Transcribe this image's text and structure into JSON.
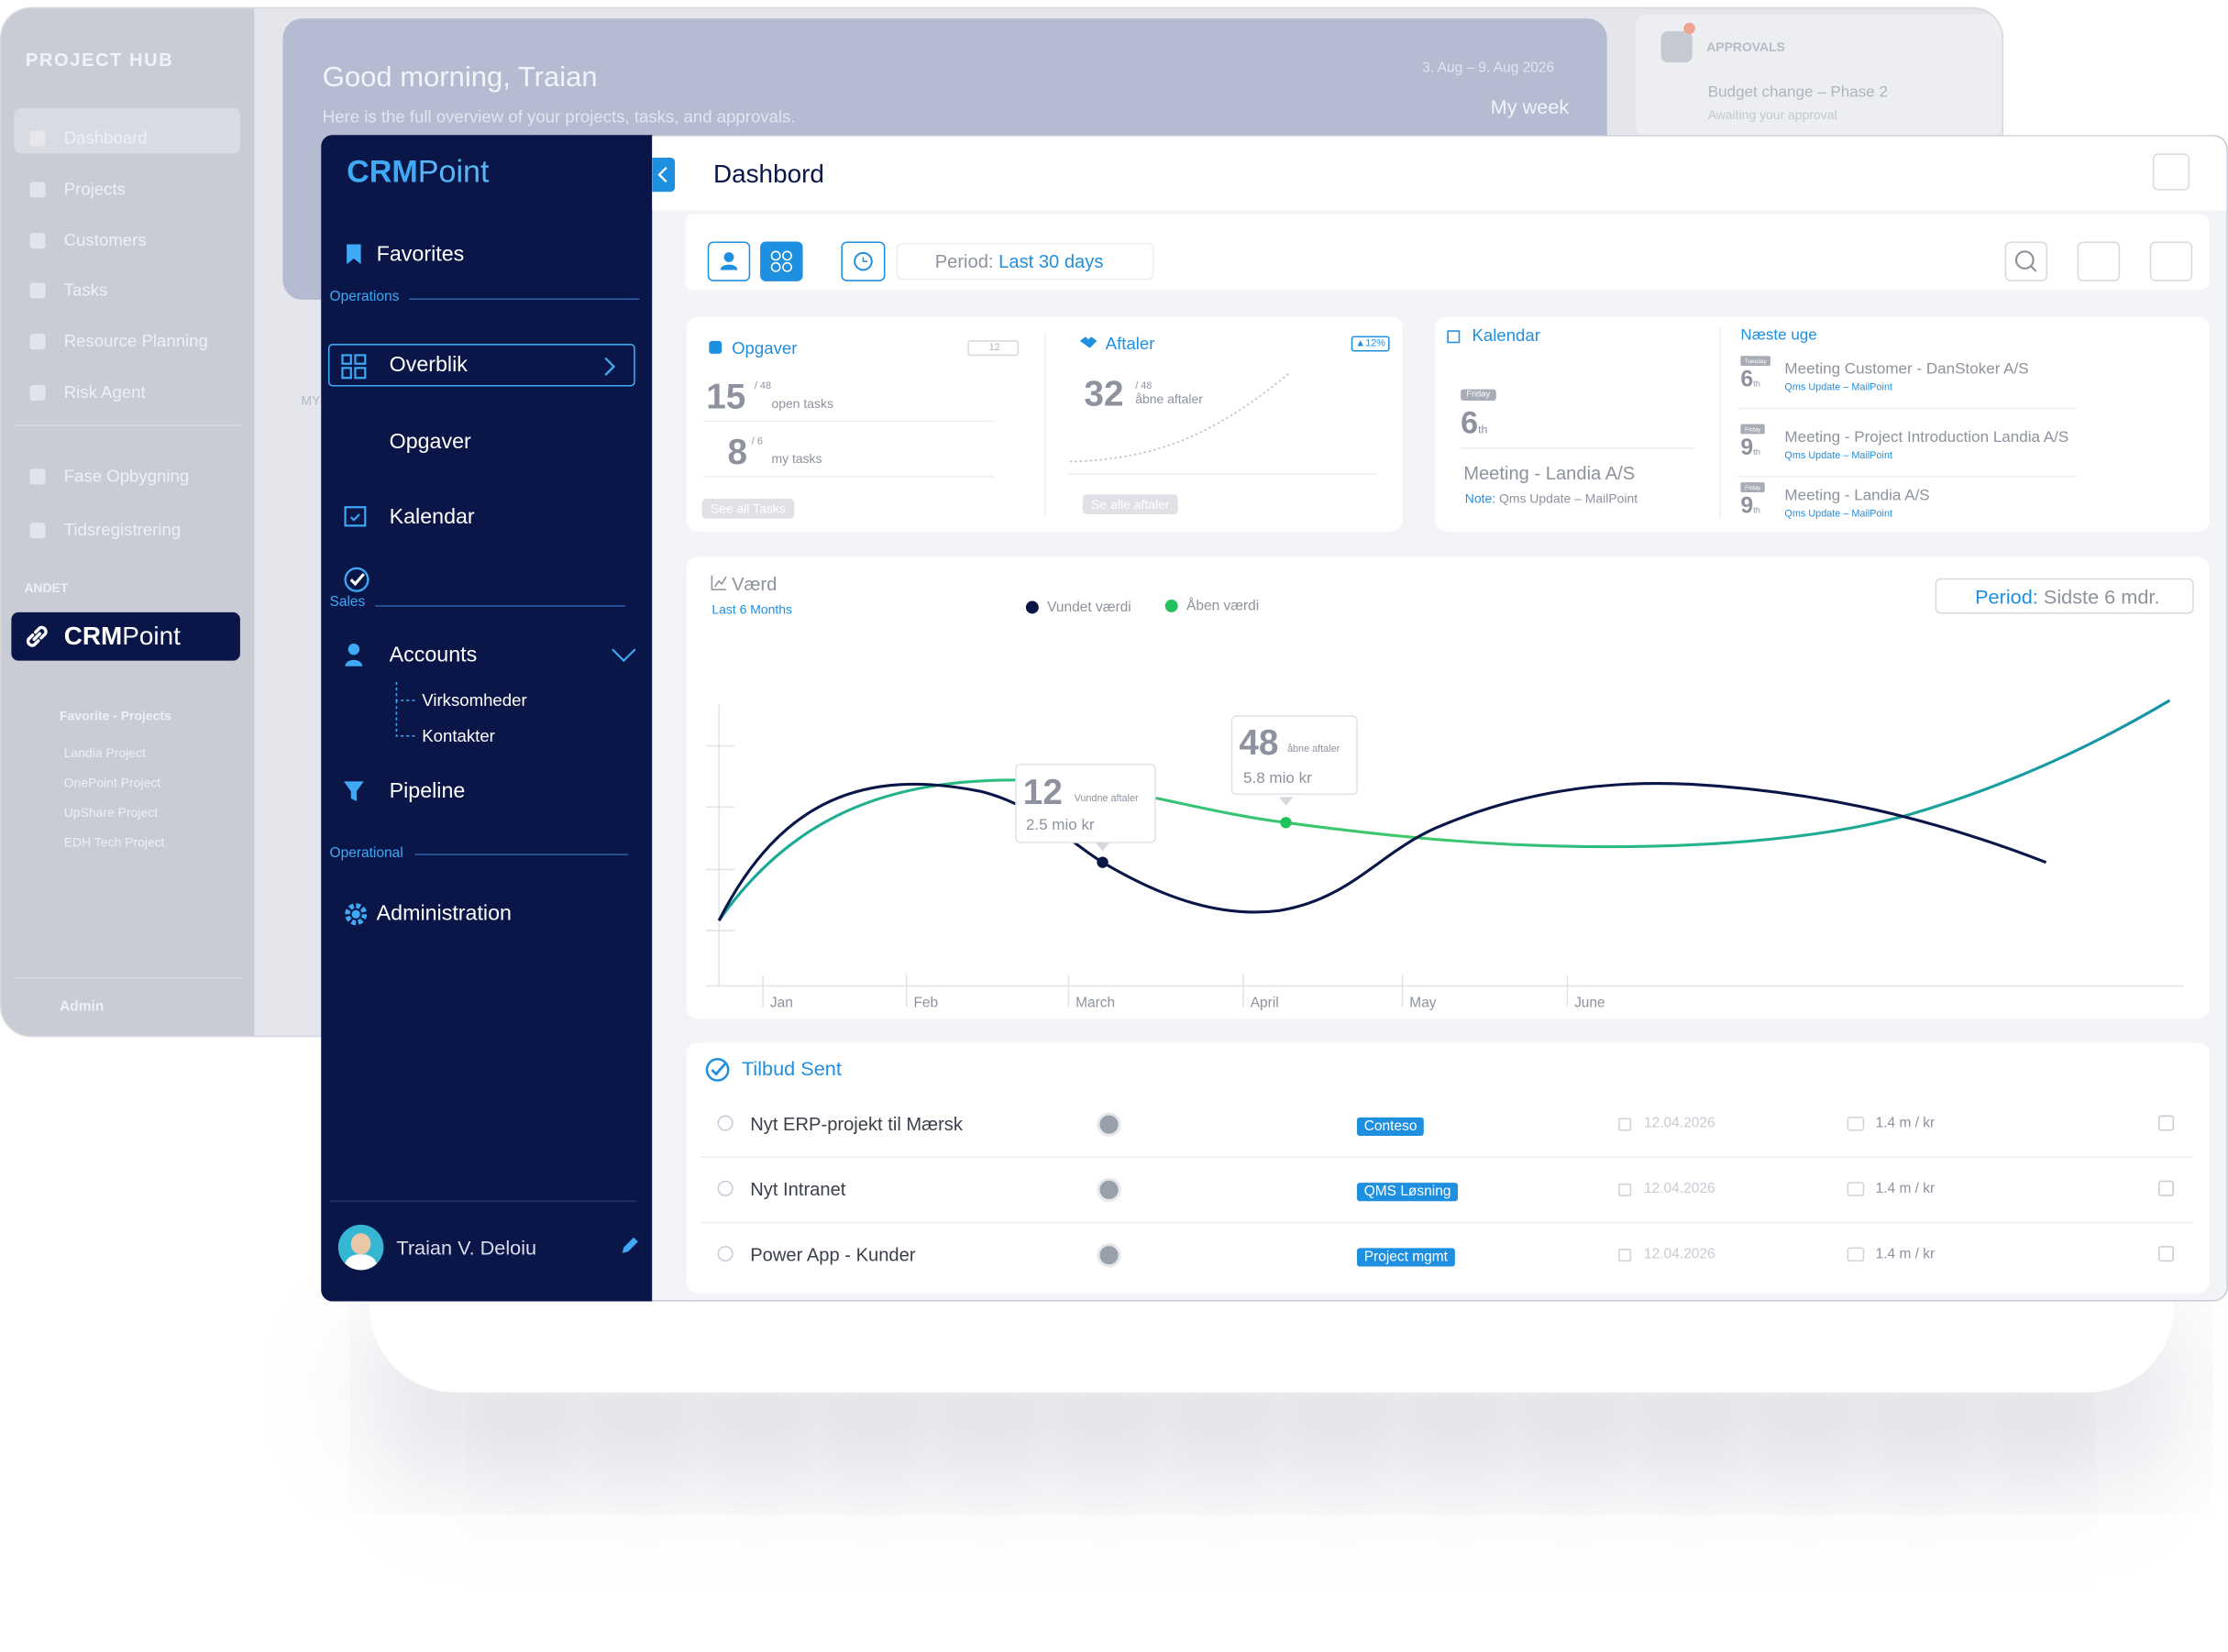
{
  "background": {
    "brand": "PROJECT HUB",
    "nav": [
      "Dashboard",
      "Projects",
      "Customers",
      "Tasks",
      "Resource Planning",
      "Risk Agent",
      "Fase Opbygning",
      "Tidsregistrering"
    ],
    "section": "ANDET",
    "app_bold": "CRM",
    "app_light": "Point",
    "favorites_title": "Favorite - Projects",
    "favorites": [
      "Landia Project",
      "OnePoint Project",
      "UpShare Project",
      "EDH Tech Project"
    ],
    "admin": "Admin",
    "greeting": "Good morning, Traian",
    "subtitle": "Here is the full overview of your projects, tasks, and approvals.",
    "date_range": "3. Aug – 9. Aug 2026",
    "week": "My week",
    "my_label": "MY",
    "approvals": {
      "title": "APPROVALS",
      "item": "Budget change – Phase 2",
      "status": "Awaiting your approval"
    }
  },
  "sidebar": {
    "brand_bold": "CRM",
    "brand_light": "Point",
    "favorites": "Favorites",
    "operations": "Operations",
    "items": [
      "Overblik",
      "Opgaver",
      "Kalendar"
    ],
    "sales": "Sales",
    "accounts": "Accounts",
    "sub_items": [
      "Virksomheder",
      "Kontakter"
    ],
    "pipeline": "Pipeline",
    "operational": "Operational",
    "administration": "Administration",
    "user": "Traian V. Deloiu"
  },
  "header": {
    "title": "Dashbord",
    "period_label": "Period:",
    "period_value": "Last 30 days"
  },
  "tasks_card": {
    "title": "Opgaver",
    "badge": "12",
    "open": "15",
    "open_total": "/ 48",
    "open_label": "open tasks",
    "mine": "8",
    "mine_total": "/ 6",
    "mine_label": "my tasks",
    "button": "See all Tasks"
  },
  "meetings_card": {
    "title": "Aftaler",
    "trend": "12%",
    "open": "32",
    "open_total": "/ 48",
    "open_label": "åbne aftaler",
    "button": "Se alle aftaler"
  },
  "calendar_card": {
    "title": "Kalendar",
    "day": "Friday",
    "date": "6",
    "suffix": "th",
    "event": "Meeting - Landia A/S",
    "note_label": "Note:",
    "note": "Qms Update – MailPoint",
    "next_title": "Næste uge",
    "next": [
      {
        "day": "Tuesday",
        "date": "6",
        "suffix": "th",
        "title": "Meeting Customer - DanStoker A/S",
        "note": "Qms Update – MailPoint"
      },
      {
        "day": "Friday",
        "date": "9",
        "suffix": "th",
        "title": "Meeting - Project Introduction Landia A/S",
        "note": "Qms Update – MailPoint"
      },
      {
        "day": "Friday",
        "date": "9",
        "suffix": "th",
        "title": "Meeting - Landia A/S",
        "note": "Qms Update – MailPoint"
      }
    ]
  },
  "value_chart": {
    "title": "Værd",
    "subtitle": "Last 6 Months",
    "legend": [
      "Vundet værdi",
      "Åben værdi"
    ],
    "period_label": "Period:",
    "period_value": "Sidste 6 mdr.",
    "months": [
      "Jan",
      "Feb",
      "March",
      "April",
      "May",
      "June"
    ],
    "tooltips": [
      {
        "value": "12",
        "label": "Vundne aftaler",
        "amount": "2.5 mio kr"
      },
      {
        "value": "48",
        "label": "åbne aftaler",
        "amount": "5.8 mio kr"
      }
    ]
  },
  "offers": {
    "title": "Tilbud Sent",
    "rows": [
      {
        "name": "Nyt ERP-projekt til Mærsk",
        "tag": "Conteso",
        "date": "12.04.2026",
        "amount": "1.4 m / kr"
      },
      {
        "name": "Nyt Intranet",
        "tag": "QMS Løsning",
        "date": "12.04.2026",
        "amount": "1.4 m / kr"
      },
      {
        "name": "Power App - Kunder",
        "tag": "Project mgmt",
        "date": "12.04.2026",
        "amount": "1.4 m / kr"
      }
    ]
  }
}
